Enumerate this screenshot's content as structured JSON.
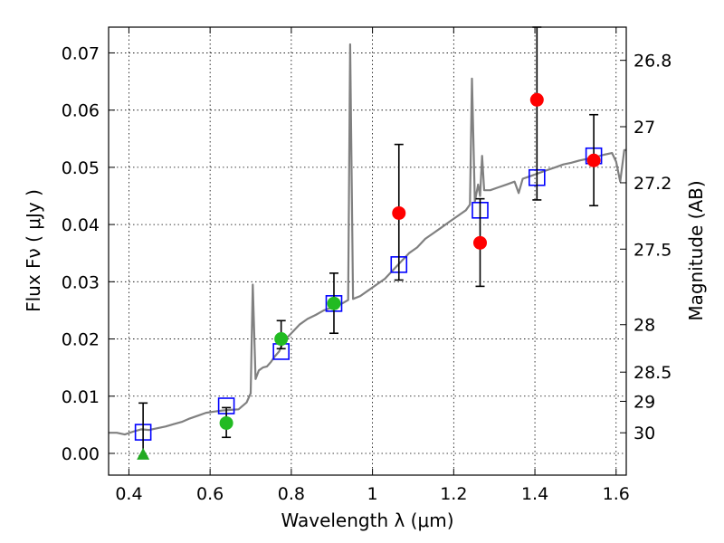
{
  "chart_data": {
    "type": "scatter",
    "xlabel": "Wavelength  λ (μm)",
    "ylabel": "Flux  Fν  ( μJy )",
    "ylabel_right": "Magnitude (AB)",
    "xlim": [
      0.35,
      1.625
    ],
    "ylim": [
      -0.0038,
      0.0745
    ],
    "grid": true,
    "x_ticks": [
      0.4,
      0.6,
      0.8,
      1.0,
      1.2,
      1.4,
      1.6
    ],
    "x_tick_labels": [
      "0.4",
      "0.6",
      "0.8",
      "1",
      "1.2",
      "1.4",
      "1.6"
    ],
    "y_ticks": [
      0.0,
      0.01,
      0.02,
      0.03,
      0.04,
      0.05,
      0.06,
      0.07
    ],
    "y_tick_labels": [
      "0.00",
      "0.01",
      "0.02",
      "0.03",
      "0.04",
      "0.05",
      "0.06",
      "0.07"
    ],
    "right_ticks": [
      {
        "flux": 0.0687,
        "label": "26.8"
      },
      {
        "flux": 0.0571,
        "label": "27"
      },
      {
        "flux": 0.0473,
        "label": "27.2"
      },
      {
        "flux": 0.0357,
        "label": "27.5"
      },
      {
        "flux": 0.0225,
        "label": "28"
      },
      {
        "flux": 0.0142,
        "label": "28.5"
      },
      {
        "flux": 0.0091,
        "label": "29"
      },
      {
        "flux": 0.0036,
        "label": "30"
      }
    ],
    "series": [
      {
        "kind": "line",
        "color": "#808080",
        "points": [
          [
            0.35,
            0.0036
          ],
          [
            0.37,
            0.0036
          ],
          [
            0.39,
            0.0033
          ],
          [
            0.41,
            0.0038
          ],
          [
            0.43,
            0.0042
          ],
          [
            0.45,
            0.0041
          ],
          [
            0.47,
            0.0044
          ],
          [
            0.49,
            0.0047
          ],
          [
            0.51,
            0.0051
          ],
          [
            0.53,
            0.0055
          ],
          [
            0.55,
            0.0061
          ],
          [
            0.57,
            0.0066
          ],
          [
            0.59,
            0.0071
          ],
          [
            0.61,
            0.0073
          ],
          [
            0.63,
            0.0075
          ],
          [
            0.65,
            0.0076
          ],
          [
            0.67,
            0.0077
          ],
          [
            0.69,
            0.0089
          ],
          [
            0.7,
            0.0105
          ],
          [
            0.705,
            0.0295
          ],
          [
            0.712,
            0.013
          ],
          [
            0.72,
            0.0145
          ],
          [
            0.73,
            0.015
          ],
          [
            0.74,
            0.0152
          ],
          [
            0.75,
            0.016
          ],
          [
            0.76,
            0.017
          ],
          [
            0.77,
            0.0178
          ],
          [
            0.78,
            0.0195
          ],
          [
            0.8,
            0.021
          ],
          [
            0.82,
            0.0225
          ],
          [
            0.84,
            0.0235
          ],
          [
            0.86,
            0.0242
          ],
          [
            0.88,
            0.025
          ],
          [
            0.9,
            0.0255
          ],
          [
            0.92,
            0.026
          ],
          [
            0.94,
            0.0268
          ],
          [
            0.945,
            0.0715
          ],
          [
            0.952,
            0.027
          ],
          [
            0.97,
            0.0275
          ],
          [
            0.99,
            0.0285
          ],
          [
            1.01,
            0.0295
          ],
          [
            1.03,
            0.0305
          ],
          [
            1.05,
            0.032
          ],
          [
            1.07,
            0.0335
          ],
          [
            1.09,
            0.035
          ],
          [
            1.11,
            0.036
          ],
          [
            1.13,
            0.0375
          ],
          [
            1.15,
            0.0385
          ],
          [
            1.17,
            0.0395
          ],
          [
            1.19,
            0.0405
          ],
          [
            1.21,
            0.0415
          ],
          [
            1.23,
            0.0425
          ],
          [
            1.24,
            0.0435
          ],
          [
            1.245,
            0.0655
          ],
          [
            1.252,
            0.044
          ],
          [
            1.26,
            0.047
          ],
          [
            1.265,
            0.045
          ],
          [
            1.27,
            0.052
          ],
          [
            1.275,
            0.046
          ],
          [
            1.29,
            0.046
          ],
          [
            1.31,
            0.0465
          ],
          [
            1.33,
            0.047
          ],
          [
            1.35,
            0.0475
          ],
          [
            1.36,
            0.0455
          ],
          [
            1.37,
            0.048
          ],
          [
            1.39,
            0.0485
          ],
          [
            1.41,
            0.049
          ],
          [
            1.43,
            0.0495
          ],
          [
            1.45,
            0.05
          ],
          [
            1.47,
            0.0505
          ],
          [
            1.49,
            0.0508
          ],
          [
            1.51,
            0.0512
          ],
          [
            1.53,
            0.0515
          ],
          [
            1.55,
            0.0518
          ],
          [
            1.57,
            0.0522
          ],
          [
            1.59,
            0.0525
          ],
          [
            1.6,
            0.051
          ],
          [
            1.61,
            0.0475
          ],
          [
            1.62,
            0.053
          ],
          [
            1.625,
            0.053
          ]
        ]
      },
      {
        "kind": "open-square",
        "color": "#0000ff",
        "points": [
          [
            0.435,
            0.0037
          ],
          [
            0.64,
            0.0083
          ],
          [
            0.775,
            0.0178
          ],
          [
            0.905,
            0.0262
          ],
          [
            1.065,
            0.033
          ],
          [
            1.265,
            0.0425
          ],
          [
            1.405,
            0.0482
          ],
          [
            1.545,
            0.052
          ]
        ]
      },
      {
        "kind": "errorbar",
        "color": "#000000",
        "bars": [
          [
            0.435,
            -0.0005,
            0.0088
          ],
          [
            0.64,
            0.0028,
            0.008
          ],
          [
            0.775,
            0.0183,
            0.0232
          ],
          [
            0.905,
            0.021,
            0.0315
          ],
          [
            1.065,
            0.0303,
            0.054
          ],
          [
            1.265,
            0.0292,
            0.0445
          ],
          [
            1.405,
            0.0443,
            0.0745
          ],
          [
            1.545,
            0.0433,
            0.0592
          ]
        ]
      },
      {
        "kind": "circle",
        "color": "#22bb22",
        "points": [
          [
            0.64,
            0.0053
          ],
          [
            0.775,
            0.02
          ],
          [
            0.905,
            0.0262
          ]
        ]
      },
      {
        "kind": "triangle",
        "color": "#22aa22",
        "points": [
          [
            0.435,
            -0.0003
          ]
        ]
      },
      {
        "kind": "circle",
        "color": "#ff0000",
        "points": [
          [
            1.065,
            0.042
          ],
          [
            1.265,
            0.0368
          ],
          [
            1.405,
            0.0618
          ],
          [
            1.545,
            0.0512
          ]
        ]
      }
    ]
  }
}
